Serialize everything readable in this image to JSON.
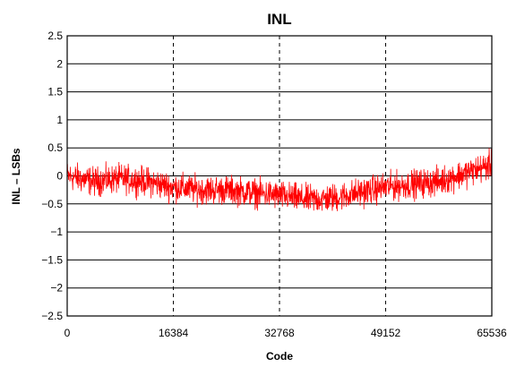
{
  "chart_data": {
    "type": "line",
    "title": "INL",
    "xlabel": "Code",
    "ylabel": "INL – LSBs",
    "xlim": [
      0,
      65536
    ],
    "ylim": [
      -2.5,
      2.5
    ],
    "x_ticks": [
      0,
      16384,
      32768,
      49152,
      65536
    ],
    "x_tick_labels": [
      "0",
      "16384",
      "32768",
      "49152",
      "65536"
    ],
    "y_ticks": [
      2.5,
      2,
      1.5,
      1,
      0.5,
      0,
      -0.5,
      -1,
      -1.5,
      -2,
      -2.5
    ],
    "y_tick_labels": [
      "2.5",
      "2",
      "1.5",
      "1",
      "0.5",
      "0",
      "−0.5",
      "−1",
      "−1.5",
      "−2",
      "−2.5"
    ],
    "grid": {
      "horizontal": "solid",
      "vertical": "dashed"
    },
    "series": [
      {
        "color": "#ff0000",
        "x": [
          0,
          4096,
          8192,
          12288,
          16384,
          20480,
          24576,
          28672,
          32768,
          36864,
          40960,
          45056,
          49152,
          53248,
          57344,
          61440,
          65536
        ],
        "y": [
          0.0,
          -0.1,
          -0.05,
          -0.1,
          -0.2,
          -0.25,
          -0.25,
          -0.3,
          -0.35,
          -0.42,
          -0.4,
          -0.3,
          -0.2,
          -0.15,
          -0.1,
          0.05,
          0.2
        ],
        "noise_amplitude": 0.25
      }
    ]
  }
}
